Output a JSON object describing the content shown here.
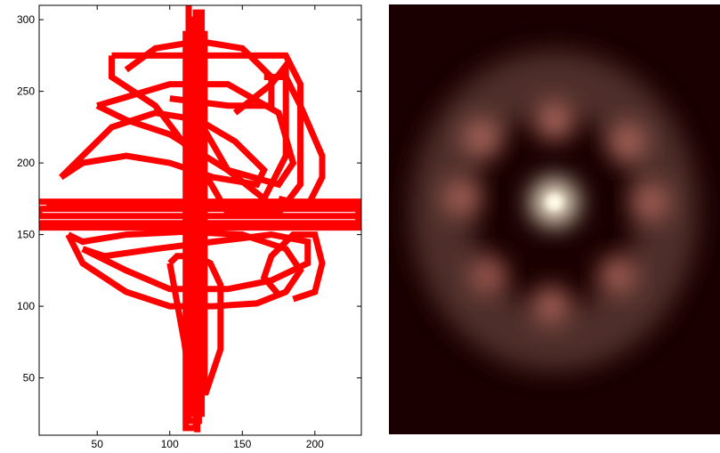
{
  "chart_data": [
    {
      "type": "line",
      "title": "",
      "xlabel": "",
      "ylabel": "",
      "xlim": [
        10,
        232
      ],
      "ylim": [
        10,
        310
      ],
      "x_ticks": [
        50,
        100,
        150,
        200
      ],
      "y_ticks": [
        50,
        100,
        150,
        200,
        250,
        300
      ],
      "x_tick_labels": [
        "50",
        "100",
        "150",
        "200"
      ],
      "y_tick_labels": [
        "50",
        "100",
        "150",
        "200",
        "250",
        "300"
      ],
      "grid": false,
      "legend": "none",
      "series_color": "#ff0000",
      "series": [
        {
          "x": [
            113,
            113,
            120,
            120,
            116,
            116,
            124,
            124,
            111,
            111,
            118,
            118,
            122,
            122,
            114,
            114,
            119,
            119
          ],
          "y": [
            310,
            20,
            20,
            300,
            300,
            40,
            40,
            290,
            290,
            15,
            15,
            305,
            305,
            25,
            25,
            280,
            280,
            12
          ]
        },
        {
          "x": [
            10,
            232,
            232,
            10,
            10,
            232,
            232,
            12,
            12,
            230,
            230,
            15
          ],
          "y": [
            173,
            173,
            168,
            168,
            163,
            163,
            158,
            158,
            155,
            155,
            170,
            170
          ]
        },
        {
          "x": [
            60,
            180,
            190,
            190,
            175,
            140,
            120,
            90,
            60,
            60
          ],
          "y": [
            275,
            275,
            255,
            185,
            165,
            165,
            200,
            240,
            260,
            275
          ]
        },
        {
          "x": [
            50,
            100,
            140,
            175,
            185,
            175,
            140,
            100,
            70,
            50
          ],
          "y": [
            240,
            255,
            255,
            235,
            200,
            185,
            195,
            220,
            230,
            240
          ]
        },
        {
          "x": [
            25,
            40,
            60,
            90,
            120,
            145,
            165,
            160,
            130,
            100,
            70,
            40,
            25
          ],
          "y": [
            190,
            205,
            225,
            235,
            230,
            215,
            195,
            185,
            190,
            200,
            205,
            200,
            190
          ]
        },
        {
          "x": [
            30,
            40,
            70,
            100,
            130,
            160,
            180,
            190,
            180,
            150,
            110,
            70,
            40,
            30
          ],
          "y": [
            150,
            130,
            110,
            100,
            100,
            102,
            110,
            125,
            140,
            150,
            152,
            150,
            145,
            150
          ]
        },
        {
          "x": [
            40,
            70,
            100,
            140,
            170,
            195,
            195,
            170,
            130,
            90,
            55,
            40
          ],
          "y": [
            140,
            125,
            112,
            112,
            118,
            130,
            145,
            150,
            145,
            140,
            135,
            140
          ]
        },
        {
          "x": [
            100,
            110,
            115,
            125,
            135,
            135,
            128,
            118,
            105,
            100
          ],
          "y": [
            130,
            75,
            40,
            40,
            70,
            115,
            130,
            135,
            135,
            130
          ]
        },
        {
          "x": [
            145,
            170,
            180,
            180,
            165,
            140,
            120
          ],
          "y": [
            235,
            255,
            268,
            205,
            175,
            195,
            230
          ]
        },
        {
          "x": [
            165,
            180,
            190,
            205,
            205,
            195,
            175
          ],
          "y": [
            260,
            260,
            240,
            205,
            190,
            170,
            175
          ]
        },
        {
          "x": [
            70,
            90,
            120,
            150,
            170,
            170,
            140,
            100
          ],
          "y": [
            265,
            280,
            285,
            280,
            260,
            240,
            240,
            245
          ]
        },
        {
          "x": [
            185,
            200,
            205,
            200,
            185,
            170,
            165,
            175
          ],
          "y": [
            105,
            110,
            130,
            150,
            150,
            135,
            120,
            108
          ]
        }
      ]
    },
    {
      "type": "heatmap",
      "title": "",
      "xlabel": "",
      "ylabel": "",
      "grid": false,
      "legend": "none",
      "colormap": "pink",
      "background_color": "#1a0000",
      "peaks": [
        {
          "x": 0.5,
          "y": 0.46,
          "intensity": 1.0
        },
        {
          "x": 0.5,
          "y": 0.27,
          "intensity": 0.55
        },
        {
          "x": 0.28,
          "y": 0.31,
          "intensity": 0.5
        },
        {
          "x": 0.72,
          "y": 0.32,
          "intensity": 0.5
        },
        {
          "x": 0.22,
          "y": 0.45,
          "intensity": 0.48
        },
        {
          "x": 0.79,
          "y": 0.46,
          "intensity": 0.48
        },
        {
          "x": 0.3,
          "y": 0.63,
          "intensity": 0.45
        },
        {
          "x": 0.69,
          "y": 0.63,
          "intensity": 0.48
        },
        {
          "x": 0.49,
          "y": 0.7,
          "intensity": 0.5
        }
      ]
    }
  ]
}
